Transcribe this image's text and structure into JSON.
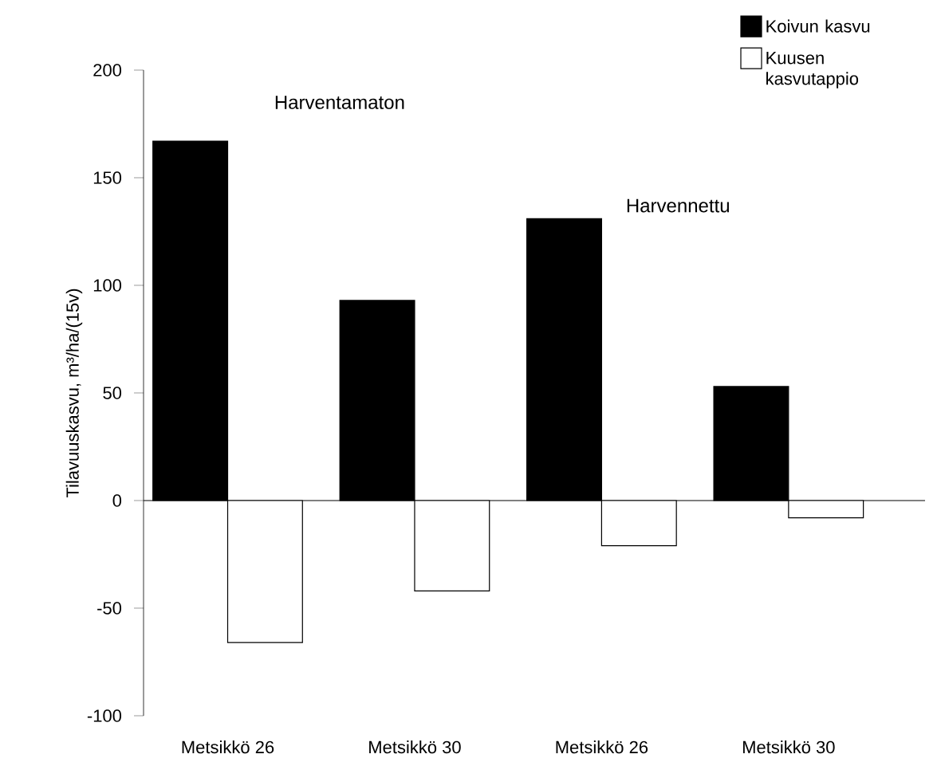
{
  "chart_data": {
    "type": "bar",
    "ylabel": "Tilavuuskasvu, m³/ha/(15v)",
    "categories": [
      "Metsikkö 26",
      "Metsikkö 30",
      "Metsikkö 26",
      "Metsikkö 30"
    ],
    "series": [
      {
        "name": "Koivun kasvu",
        "color": "#000000",
        "values": [
          167,
          93,
          131,
          53
        ]
      },
      {
        "name": "Kuusen kasvutappio",
        "color": "#ffffff",
        "values": [
          -66,
          -42,
          -21,
          -8
        ]
      }
    ],
    "ylim": [
      -100,
      200
    ],
    "yticks": [
      -100,
      -50,
      0,
      50,
      100,
      150,
      200
    ],
    "annotations": [
      "Harventamaton",
      "Harvennettu"
    ],
    "legend": "top right"
  }
}
